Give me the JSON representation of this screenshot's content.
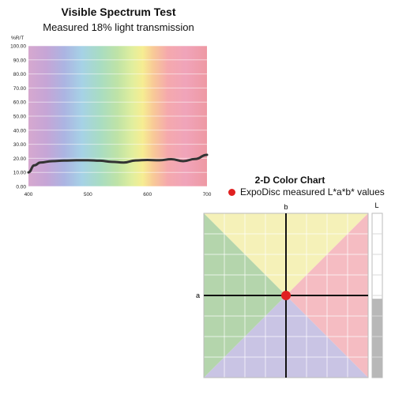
{
  "chart_data": [
    {
      "type": "line",
      "title": "Visible Spectrum Test",
      "subtitle": "Measured 18% light transmission",
      "ylabel": "%R/T",
      "xlabel": "",
      "xlim": [
        400,
        700
      ],
      "ylim": [
        0,
        100
      ],
      "x_ticks": [
        "400",
        "500",
        "600",
        "700"
      ],
      "y_ticks": [
        "0.00",
        "10.00",
        "20.00",
        "30.00",
        "40.00",
        "50.00",
        "60.00",
        "70.00",
        "80.00",
        "90.00",
        "100.00"
      ],
      "grid": true,
      "background": "visible spectrum gradient",
      "series": [
        {
          "color": "#333333",
          "x": [
            400,
            410,
            420,
            440,
            460,
            480,
            500,
            520,
            540,
            560,
            580,
            600,
            620,
            640,
            660,
            680,
            700
          ],
          "y": [
            10,
            15,
            17,
            18,
            18.4,
            18.6,
            18.6,
            18.3,
            17.5,
            17,
            18.5,
            18.8,
            18.6,
            19.4,
            18,
            19.5,
            22.5
          ]
        }
      ]
    },
    {
      "type": "scatter",
      "title": "2-D Color Chart",
      "legend": [
        "ExpoDisc measured L*a*b* values"
      ],
      "xlabel": "a",
      "ylabel": "b",
      "lightness_label": "L",
      "xlim": [
        -1,
        1
      ],
      "ylim": [
        -1,
        1
      ],
      "grid": true,
      "quadrant_colors": {
        "top": "#f5f1b8",
        "right": "#f5bcc2",
        "bottom": "#c9c4e4",
        "left": "#b4d5ac"
      },
      "points": [
        {
          "a": 0,
          "b": 0,
          "color": "#e02020"
        }
      ],
      "lightness_value": 0.48
    }
  ]
}
